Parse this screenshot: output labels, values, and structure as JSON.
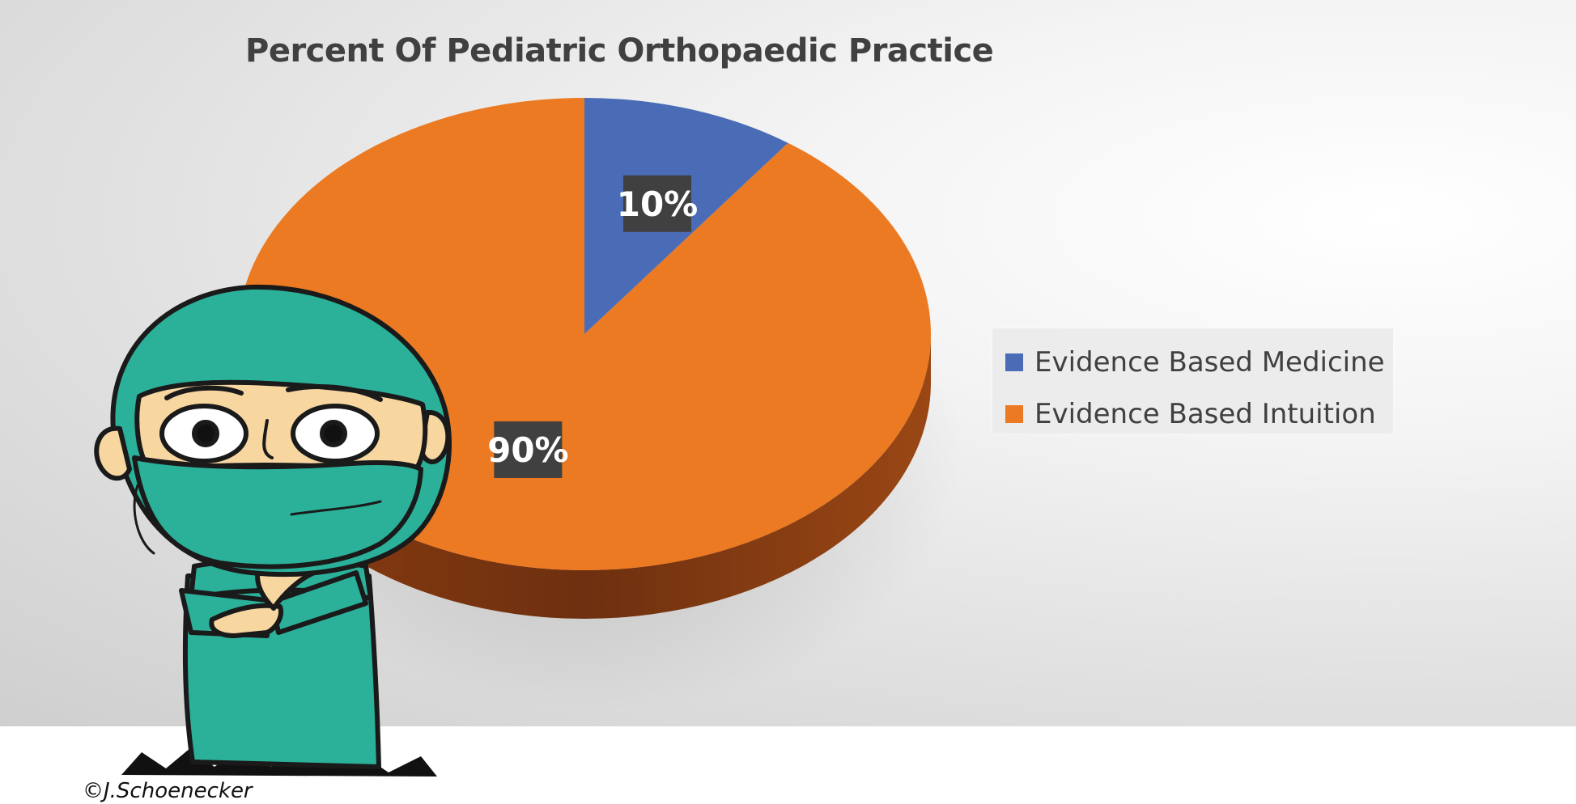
{
  "chart_data": {
    "type": "pie",
    "title": "Percent Of Pediatric Orthopaedic Practice",
    "categories": [
      "Evidence Based Medicine",
      "Evidence Based Intuition"
    ],
    "values": [
      10,
      90
    ],
    "data_labels": [
      "10%",
      "90%"
    ],
    "colors": [
      "#4a6cb6",
      "#ec7a22"
    ],
    "style": "3d",
    "legend": {
      "position": "right",
      "items": [
        {
          "label": "Evidence Based Medicine",
          "color": "#4a6cb6"
        },
        {
          "label": "Evidence Based Intuition",
          "color": "#ec7a22"
        }
      ]
    }
  },
  "overlay": {
    "illustration": "cartoon-surgeon-in-scrubs",
    "colors": {
      "scrubs": "#2bb09a",
      "skin": "#f7d6a0"
    }
  },
  "credit": "©J.Schoenecker"
}
